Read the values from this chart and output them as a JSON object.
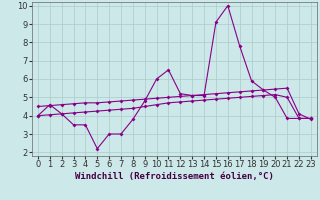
{
  "xlabel": "Windchill (Refroidissement éolien,°C)",
  "background_color": "#cce8e8",
  "grid_color": "#aacccc",
  "line_color": "#880088",
  "xlim": [
    -0.5,
    23.5
  ],
  "ylim": [
    1.8,
    10.2
  ],
  "yticks": [
    2,
    3,
    4,
    5,
    6,
    7,
    8,
    9,
    10
  ],
  "xticks": [
    0,
    1,
    2,
    3,
    4,
    5,
    6,
    7,
    8,
    9,
    10,
    11,
    12,
    13,
    14,
    15,
    16,
    17,
    18,
    19,
    20,
    21,
    22,
    23
  ],
  "line1_x": [
    0,
    1,
    2,
    3,
    4,
    5,
    6,
    7,
    8,
    9,
    10,
    11,
    12,
    13,
    14,
    15,
    16,
    17,
    18,
    19,
    20,
    21,
    22,
    23
  ],
  "line1_y": [
    4.0,
    4.6,
    4.1,
    3.5,
    3.5,
    2.2,
    3.0,
    3.0,
    3.8,
    4.8,
    6.0,
    6.5,
    5.2,
    5.1,
    5.1,
    9.1,
    10.0,
    7.8,
    5.9,
    5.4,
    5.0,
    3.85,
    3.85,
    3.85
  ],
  "line2_x": [
    0,
    1,
    2,
    3,
    4,
    5,
    6,
    7,
    8,
    9,
    10,
    11,
    12,
    13,
    14,
    15,
    16,
    17,
    18,
    19,
    20,
    21,
    22,
    23
  ],
  "line2_y": [
    4.5,
    4.55,
    4.6,
    4.65,
    4.7,
    4.7,
    4.75,
    4.8,
    4.85,
    4.9,
    4.95,
    5.0,
    5.05,
    5.1,
    5.15,
    5.2,
    5.25,
    5.3,
    5.35,
    5.4,
    5.45,
    5.5,
    4.1,
    3.8
  ],
  "line3_x": [
    0,
    1,
    2,
    3,
    4,
    5,
    6,
    7,
    8,
    9,
    10,
    11,
    12,
    13,
    14,
    15,
    16,
    17,
    18,
    19,
    20,
    21,
    22,
    23
  ],
  "line3_y": [
    4.0,
    4.05,
    4.1,
    4.15,
    4.2,
    4.25,
    4.3,
    4.35,
    4.4,
    4.5,
    4.6,
    4.7,
    4.75,
    4.8,
    4.85,
    4.9,
    4.95,
    5.0,
    5.05,
    5.1,
    5.15,
    5.0,
    3.85,
    3.85
  ],
  "marker": "D",
  "markersize": 2,
  "linewidth": 0.8,
  "label_fontsize": 6.5,
  "tick_fontsize": 6
}
